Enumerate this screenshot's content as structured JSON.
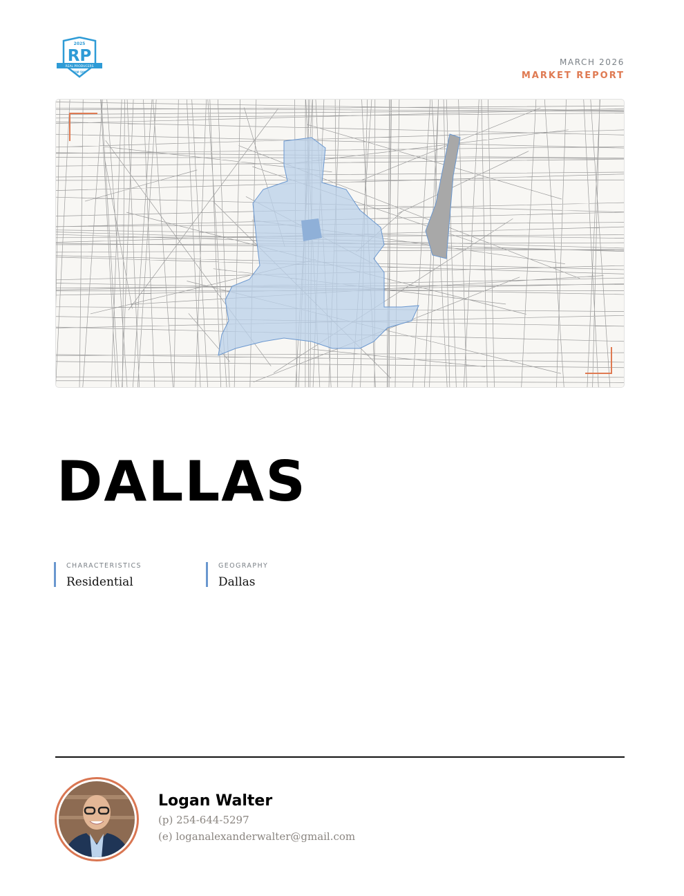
{
  "logo": {
    "year": "2025",
    "mark": "RP",
    "ribbon": "REAL PRODUCERS",
    "sub": "TOP 500",
    "side": "NORTH DALLAS"
  },
  "header": {
    "date": "MARCH 2026",
    "report": "MARKET REPORT"
  },
  "colors": {
    "accent": "#df7a52",
    "highlight": "#6a97cf",
    "region_fill": "#b9d0ea"
  },
  "title": "DALLAS",
  "meta": [
    {
      "label": "CHARACTERISTICS",
      "value": "Residential"
    },
    {
      "label": "GEOGRAPHY",
      "value": "Dallas"
    }
  ],
  "agent": {
    "name": "Logan Walter",
    "phone": "(p) 254-644-5297",
    "email": "(e) loganalexanderwalter@gmail.com"
  }
}
